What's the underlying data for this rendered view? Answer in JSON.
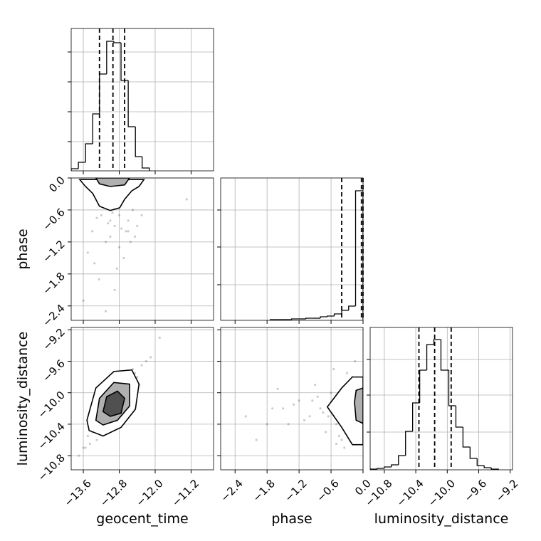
{
  "chart_data": [
    {
      "type": "histogram",
      "xlim": [
        -13.87,
        -10.7
      ],
      "ylim": [
        0,
        200
      ],
      "xticks": [
        -13.6,
        -12.8,
        -12.0,
        -11.2
      ],
      "yticks": [
        41,
        83,
        125,
        167
      ],
      "grid": true,
      "bins": [
        -13.87,
        -13.71,
        -13.55,
        -13.39,
        -13.24,
        -13.08,
        -12.92,
        -12.76,
        -12.6,
        -12.44,
        -12.29,
        -12.13
      ],
      "counts": [
        3,
        12,
        38,
        80,
        136,
        182,
        180,
        127,
        62,
        20,
        4
      ],
      "quantiles": [
        -13.24,
        -12.94,
        -12.68
      ],
      "color": "#000000"
    },
    {
      "type": "scatter",
      "xlim": [
        -13.87,
        -10.7
      ],
      "ylim": [
        -2.67,
        0
      ],
      "xticks": [
        -13.6,
        -12.8,
        -12.0,
        -11.2
      ],
      "yticks": [
        {
          "value": 0,
          "label": "0.0"
        },
        {
          "value": -0.6,
          "label": "−0.6"
        },
        {
          "value": -1.2,
          "label": "−1.2"
        },
        {
          "value": -1.8,
          "label": "−1.8"
        },
        {
          "value": -2.4,
          "label": "−2.4"
        }
      ],
      "y_label": "phase",
      "grid": true,
      "color": "#000000",
      "x": [
        -13.2,
        -12.6,
        -12.9,
        -13.4,
        -12.5,
        -13.0,
        -12.8,
        -13.3,
        -12.4,
        -12.7,
        -13.1,
        -12.95,
        -13.5,
        -12.3,
        -12.85,
        -13.05,
        -12.65,
        -13.25,
        -12.75,
        -12.55,
        -13.15,
        -12.9,
        -13.35,
        -12.45,
        -13.0,
        -12.8,
        -11.3,
        -13.6,
        -12.6,
        -13.1
      ],
      "y": [
        -0.7,
        -0.8,
        -0.9,
        -1.0,
        -0.6,
        -1.1,
        -1.3,
        -0.75,
        -0.9,
        -1.5,
        -1.2,
        -0.65,
        -1.4,
        -0.7,
        -1.7,
        -0.85,
        -1.0,
        -1.9,
        -0.95,
        -1.2,
        -0.55,
        -2.1,
        -1.6,
        -1.1,
        -0.8,
        -0.7,
        -0.4,
        -2.3,
        -1.0,
        -2.5
      ],
      "contours": [
        {
          "x": [
            -13.68,
            -13.55,
            -13.39,
            -13.24,
            -13.0,
            -12.79,
            -12.68,
            -12.52,
            -12.36,
            -12.25
          ],
          "y": [
            -0.03,
            -0.16,
            -0.29,
            -0.53,
            -0.61,
            -0.56,
            -0.4,
            -0.24,
            -0.16,
            -0.03
          ]
        },
        {
          "x": [
            -13.32,
            -13.24,
            -13.0,
            -12.68,
            -12.57
          ],
          "y": [
            0,
            -0.11,
            -0.16,
            -0.13,
            0
          ]
        }
      ]
    },
    {
      "type": "histogram",
      "xlim": [
        -2.67,
        0
      ],
      "ylim": [
        0,
        200
      ],
      "xticks": [
        -2.4,
        -1.8,
        -1.2,
        -0.6,
        0
      ],
      "yticks": [
        50,
        103,
        155
      ],
      "grid": true,
      "bins": [
        -1.74,
        -1.6,
        -1.47,
        -1.34,
        -1.2,
        -1.07,
        -0.94,
        -0.8,
        -0.67,
        -0.54,
        -0.4,
        -0.27,
        -0.14,
        0
      ],
      "counts": [
        1,
        1,
        1,
        2,
        2,
        3,
        3,
        5,
        6,
        9,
        14,
        20,
        182
      ],
      "quantiles": [
        -0.4,
        -0.03,
        0
      ],
      "color": "#000000"
    },
    {
      "type": "scatter",
      "xlim": [
        -13.87,
        -10.7
      ],
      "ylim": [
        -10.98,
        -9.17
      ],
      "xticks": [
        {
          "value": -13.6,
          "label": "−13.6"
        },
        {
          "value": -12.8,
          "label": "−12.8"
        },
        {
          "value": -12.0,
          "label": "−12.0"
        },
        {
          "value": -11.2,
          "label": "−11.2"
        }
      ],
      "yticks": [
        {
          "value": -9.2,
          "label": "−9.2"
        },
        {
          "value": -9.6,
          "label": "−9.6"
        },
        {
          "value": -10.0,
          "label": "−10.0"
        },
        {
          "value": -10.4,
          "label": "−10.4"
        },
        {
          "value": -10.8,
          "label": "−10.8"
        }
      ],
      "x_label": "geocent_time",
      "y_label": "luminosity_distance",
      "grid": true,
      "color": "#000000",
      "x": [
        -13.3,
        -12.5,
        -13.6,
        -12.2,
        -12.9,
        -13.0,
        -12.7,
        -13.4,
        -12.4,
        -13.7,
        -12.3,
        -12.8,
        -13.2,
        -12.6,
        -13.5,
        -12.1,
        -13.1,
        -12.95,
        -12.45,
        -13.45,
        -12.65,
        -13.05,
        -12.35,
        -13.25,
        -12.85,
        -13.55,
        -12.55,
        -12.75,
        -11.9,
        -13.15
      ],
      "y": [
        -10.6,
        -9.7,
        -10.7,
        -9.6,
        -10.2,
        -10.4,
        -9.9,
        -10.5,
        -9.8,
        -10.8,
        -9.65,
        -10.0,
        -10.3,
        -9.85,
        -10.55,
        -9.55,
        -10.45,
        -10.1,
        -9.75,
        -10.65,
        -10.05,
        -10.25,
        -9.9,
        -10.35,
        -9.95,
        -10.7,
        -9.8,
        -10.15,
        -9.3,
        -10.5
      ],
      "contours": [
        {
          "x": [
            -13.47,
            -13.52,
            -13.32,
            -12.92,
            -12.52,
            -12.36,
            -12.44,
            -12.76,
            -13.16
          ],
          "y": [
            -10.48,
            -10.35,
            -9.94,
            -9.73,
            -9.71,
            -9.89,
            -10.21,
            -10.44,
            -10.55
          ]
        },
        {
          "x": [
            -13.32,
            -13.24,
            -12.92,
            -12.57,
            -12.57,
            -12.84,
            -13.16
          ],
          "y": [
            -10.35,
            -10.07,
            -9.87,
            -9.89,
            -10.17,
            -10.35,
            -10.41
          ]
        },
        {
          "x": [
            -13.16,
            -13.08,
            -12.84,
            -12.68,
            -12.76,
            -13.0
          ],
          "y": [
            -10.24,
            -10.05,
            -9.98,
            -10.07,
            -10.26,
            -10.3
          ]
        }
      ]
    },
    {
      "type": "scatter",
      "xlim": [
        -2.67,
        0
      ],
      "ylim": [
        -10.98,
        -9.17
      ],
      "xticks": [
        {
          "value": -2.4,
          "label": "−2.4"
        },
        {
          "value": -1.8,
          "label": "−1.8"
        },
        {
          "value": -1.2,
          "label": "−1.2"
        },
        {
          "value": -0.6,
          "label": "−0.6"
        },
        {
          "value": 0,
          "label": "0.0"
        }
      ],
      "yticks": [
        -9.2,
        -9.6,
        -10.0,
        -10.4,
        -10.8
      ],
      "x_label": "phase",
      "grid": true,
      "color": "#000000",
      "x": [
        -0.3,
        -0.5,
        -0.8,
        -1.0,
        -1.2,
        -0.2,
        -0.7,
        -1.5,
        -0.9,
        -0.4,
        -1.8,
        -0.6,
        -1.1,
        -0.35,
        -2.2,
        -0.55,
        -1.3,
        -0.25,
        -0.75,
        -1.6,
        -0.45,
        -0.85,
        -1.4,
        -0.15,
        -0.65,
        -2.0,
        -0.95,
        -0.5,
        -1.7,
        -0.3
      ],
      "y": [
        -10.0,
        -10.4,
        -10.2,
        -10.3,
        -10.1,
        -9.8,
        -10.5,
        -10.2,
        -9.9,
        -10.6,
        -10.4,
        -10.0,
        -10.35,
        -10.7,
        -10.3,
        -9.7,
        -10.15,
        -10.45,
        -10.25,
        -9.95,
        -10.55,
        -10.05,
        -10.4,
        -9.6,
        -10.3,
        -10.6,
        -10.1,
        -10.65,
        -10.2,
        -9.75
      ],
      "contours": [
        {
          "x": [
            0,
            -0.2,
            -0.4,
            -0.67,
            -0.4,
            -0.2,
            0
          ],
          "y": [
            -9.8,
            -9.8,
            -9.94,
            -10.18,
            -10.44,
            -10.66,
            -10.66
          ]
        },
        {
          "x": [
            0,
            -0.13,
            -0.16,
            -0.13,
            0
          ],
          "y": [
            -9.94,
            -9.97,
            -10.12,
            -10.35,
            -10.39
          ]
        }
      ]
    },
    {
      "type": "histogram",
      "xlim": [
        -10.98,
        -9.17
      ],
      "ylim": [
        0,
        200
      ],
      "xticks": [
        {
          "value": -10.8,
          "label": "−10.8"
        },
        {
          "value": -10.4,
          "label": "−10.4"
        },
        {
          "value": -10.0,
          "label": "−10.0"
        },
        {
          "value": -9.6,
          "label": "−9.6"
        },
        {
          "value": -9.2,
          "label": "−9.2"
        }
      ],
      "yticks": [
        53,
        105,
        155
      ],
      "x_label": "luminosity_distance",
      "grid": true,
      "bins": [
        -10.98,
        -10.89,
        -10.8,
        -10.71,
        -10.62,
        -10.53,
        -10.44,
        -10.35,
        -10.26,
        -10.17,
        -10.08,
        -9.98,
        -9.89,
        -9.8,
        -9.71,
        -9.62,
        -9.53,
        -9.44,
        -9.35
      ],
      "counts": [
        1,
        2,
        4,
        7,
        20,
        54,
        94,
        140,
        176,
        183,
        140,
        90,
        60,
        32,
        16,
        6,
        3,
        1
      ],
      "quantiles": [
        -10.36,
        -10.16,
        -9.95
      ],
      "color": "#000000"
    }
  ]
}
